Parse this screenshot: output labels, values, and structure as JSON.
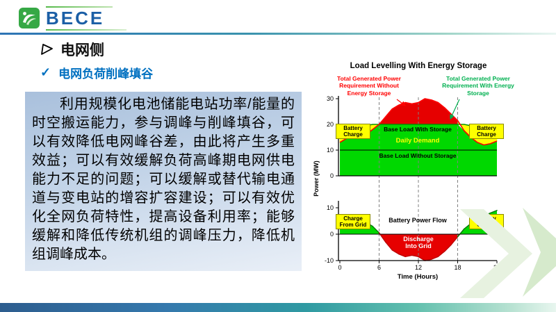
{
  "logo": {
    "text": "BECE"
  },
  "content": {
    "section_title": "电网侧",
    "check_glyph": "✓",
    "subsection_title": "电网负荷削峰填谷",
    "paragraph": "利用规模化电池储能电站功率/能量的时空搬运能力，参与调峰与削峰填谷，可以有效降低电网峰谷差，由此将产生多重效益；可以有效缓解负荷高峰期电网供电能力不足的问题；可以缓解或替代输电通道与变电站的增容扩容建设；可以有效优化全网负荷特性，提高设备利用率；能够缓解和降低传统机组的调峰压力，降低机组调峰成本。"
  },
  "chart_data": {
    "type": "area",
    "title": "Load Levelling With Energy Storage",
    "xlabel": "Time (Hours)",
    "ylabel": "Power (MW)",
    "hours": [
      0,
      1,
      2,
      3,
      4,
      5,
      6,
      7,
      8,
      9,
      10,
      11,
      12,
      13,
      14,
      15,
      16,
      17,
      18,
      19,
      20,
      21,
      22,
      23,
      24
    ],
    "x_ticks": [
      0,
      6,
      12,
      18,
      24
    ],
    "dashed_gridlines_at_hours": [
      6,
      12,
      18
    ],
    "top_plot": {
      "ylim": [
        0,
        32
      ],
      "yticks": [
        30,
        20,
        10,
        0
      ],
      "base_load_line_mw": 10,
      "series": [
        {
          "name": "Total Generated Power Requirement Without Energy Storage",
          "color": "#ff0000",
          "values": [
            13,
            14.5,
            15,
            16.5,
            16,
            18,
            20,
            23,
            26,
            27.5,
            28.5,
            28,
            28.5,
            30,
            29.5,
            28.5,
            26.5,
            24,
            21.5,
            17.5,
            15,
            13,
            12,
            12.5,
            13.5
          ]
        },
        {
          "name": "Total Generated Power Requirement With Energy Storage",
          "color": "#089000",
          "values": [
            17.5,
            18,
            18.5,
            19,
            19.5,
            20,
            20,
            20,
            20,
            20,
            20,
            20,
            20,
            20,
            20,
            20,
            20,
            20,
            20,
            20,
            19.5,
            19,
            18.5,
            18,
            18
          ]
        }
      ]
    },
    "bottom_plot": {
      "ylim": [
        -11,
        11
      ],
      "yticks": [
        10,
        0,
        -10
      ],
      "series": [
        {
          "name": "Battery Power Flow",
          "values": [
            7,
            7,
            6,
            5.5,
            4.5,
            3,
            0.5,
            -3,
            -6,
            -7.5,
            -8.5,
            -8,
            -8.5,
            -10,
            -9.5,
            -8.5,
            -6.5,
            -4,
            -1,
            2,
            4,
            6,
            7,
            8,
            9
          ]
        }
      ]
    },
    "labels": {
      "battery_charge": "Battery Charge",
      "base_load_with_storage": "Base Load With Storage",
      "daily_demand": "Daily Demand",
      "base_load_without_storage": "Base Load Without Storage",
      "charge_from_grid": "Charge From Grid",
      "battery_power_flow": "Battery Power Flow",
      "discharge_into_grid": "Discharge Into Grid"
    },
    "colors": {
      "demand_fill": "#00d800",
      "charge_fill": "#ffff00",
      "discharge_fill": "#e60000",
      "without_curve": "#ff0000",
      "with_curve": "#089000",
      "annotation_with": "#00b050",
      "flow_positive": "#067d06",
      "flow_negative": "#c00000",
      "accent_blue": "#0070c0",
      "logo_blue": "#1b5fa6",
      "logo_green": "#36a845"
    }
  }
}
